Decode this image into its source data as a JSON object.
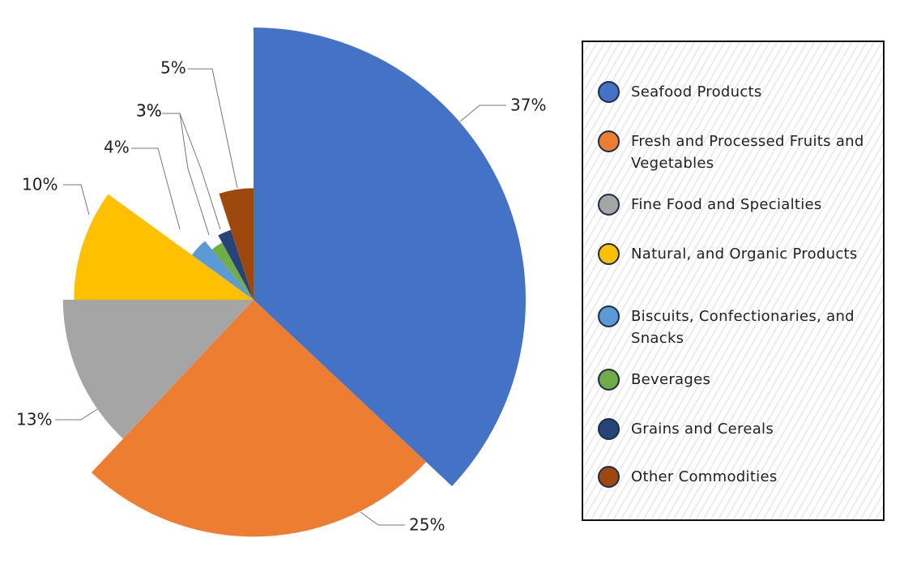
{
  "chart_data": {
    "type": "pie",
    "categories": [
      "Seafood Products",
      "Fresh and Processed Fruits and Vegetables",
      "Fine Food and Specialties",
      "Natural, and Organic Products",
      "Biscuits, Confectionaries, and Snacks",
      "Beverages",
      "Grains and Cereals",
      "Other Commodities"
    ],
    "values": [
      37,
      25,
      13,
      10,
      4,
      3,
      3,
      5
    ],
    "value_labels": [
      "37%",
      "25%",
      "13%",
      "10%",
      "4%",
      "3%",
      "3%",
      "5%"
    ],
    "radii": [
      100,
      87,
      70,
      66,
      28,
      24,
      27,
      41
    ],
    "colors": [
      "#4472c4",
      "#ed7d31",
      "#a5a5a5",
      "#ffc000",
      "#5b9bd5",
      "#70ad47",
      "#264478",
      "#9e480e"
    ],
    "legend": "right"
  }
}
